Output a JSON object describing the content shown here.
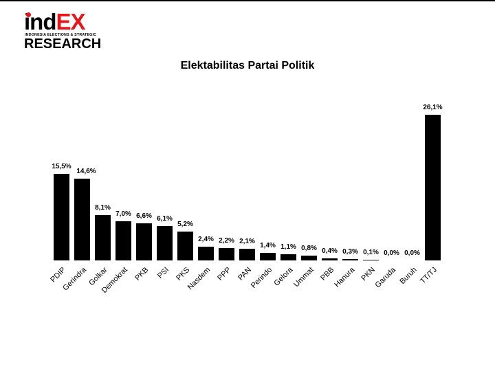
{
  "logo": {
    "main_black": "ind",
    "main_red": "EX",
    "subtitle": "INDONESIA ELECTIONS & STRATEGIC",
    "research": "RESEARCH",
    "brand_red": "#e8161b"
  },
  "title": "Elektabilitas Partai Politik",
  "chart_data": {
    "type": "bar",
    "title": "Elektabilitas Partai Politik",
    "xlabel": "",
    "ylabel": "",
    "grid": false,
    "legend": null,
    "bar_color": "#000000",
    "categories": [
      "PDIP",
      "Gerindra",
      "Golkar",
      "Demokrat",
      "PKB",
      "PSI",
      "PKS",
      "Nasdem",
      "PPP",
      "PAN",
      "Perindo",
      "Gelora",
      "Ummat",
      "PBB",
      "Hanura",
      "PKN",
      "Garuda",
      "Buruh",
      "TT/TJ"
    ],
    "values": [
      15.5,
      14.6,
      8.1,
      7.0,
      6.6,
      6.1,
      5.2,
      2.4,
      2.2,
      2.1,
      1.4,
      1.1,
      0.8,
      0.4,
      0.3,
      0.1,
      0.0,
      0.0,
      26.1
    ],
    "labels": [
      "15,5%",
      "14,6%",
      "8,1%",
      "7,0%",
      "6,6%",
      "6,1%",
      "5,2%",
      "2,4%",
      "2,2%",
      "2,1%",
      "1,4%",
      "1,1%",
      "0,8%",
      "0,4%",
      "0,3%",
      "0,1%",
      "0,0%",
      "0,0%",
      "26,1%"
    ],
    "unit": "%"
  }
}
